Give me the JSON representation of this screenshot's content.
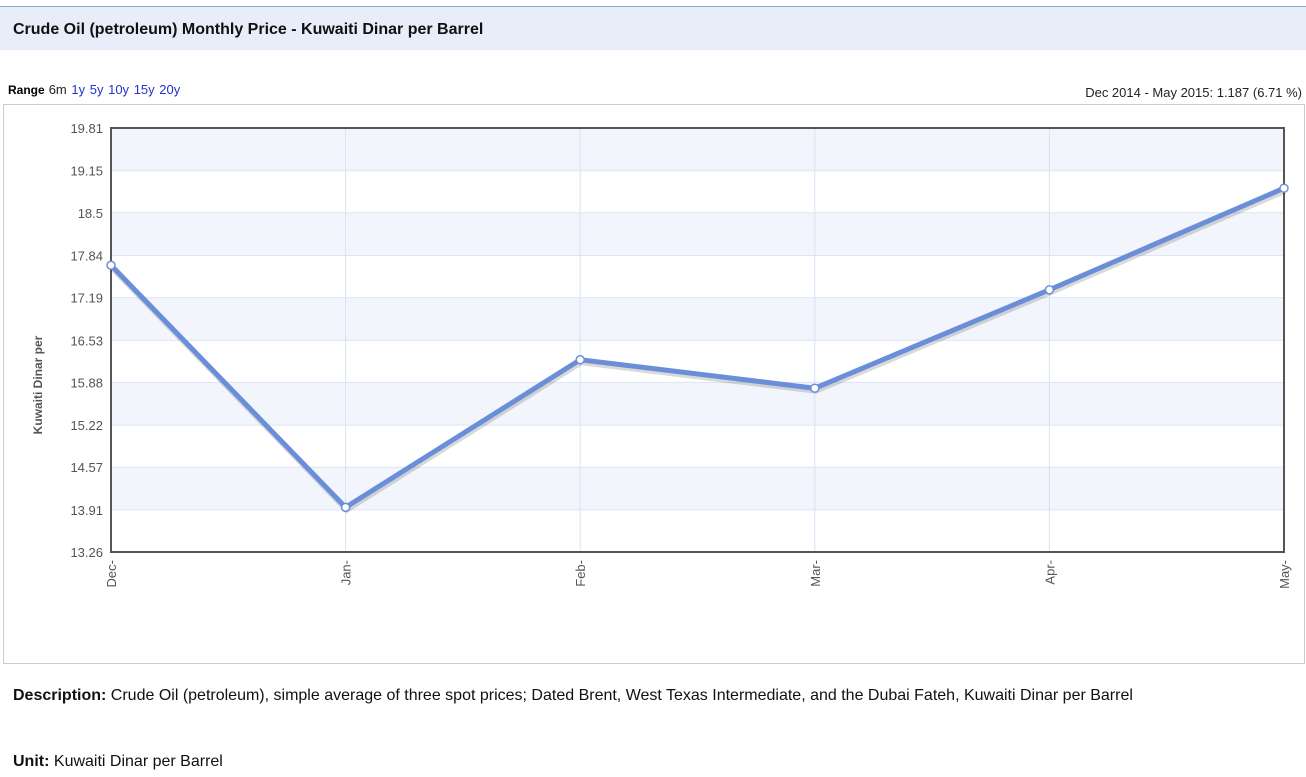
{
  "header": {
    "title": "Crude Oil (petroleum) Monthly Price - Kuwaiti Dinar per Barrel"
  },
  "range": {
    "label": "Range",
    "options": [
      "6m",
      "1y",
      "5y",
      "10y",
      "15y",
      "20y"
    ]
  },
  "summary": "Dec 2014 - May 2015: 1.187 (6.71 %)",
  "chart_data": {
    "type": "line",
    "ylabel": "Kuwaiti Dinar per",
    "categories": [
      "Dec-",
      "Jan-",
      "Feb-",
      "Mar-",
      "Apr-",
      "May-"
    ],
    "series": [
      {
        "name": "Kuwaiti Dinar per Barrel",
        "color": "#6a8fd8",
        "values": [
          17.69,
          13.95,
          16.23,
          15.79,
          17.31,
          18.88
        ]
      }
    ],
    "ylim": [
      13.26,
      19.81
    ],
    "yticks": [
      13.26,
      13.91,
      14.57,
      15.22,
      15.88,
      16.53,
      17.19,
      17.84,
      18.5,
      19.15,
      19.81
    ],
    "grid": true
  },
  "description": {
    "label": "Description:",
    "text": "Crude Oil (petroleum), simple average of three spot prices; Dated Brent, West Texas Intermediate, and the Dubai Fateh, Kuwaiti Dinar per Barrel"
  },
  "unit": {
    "label": "Unit:",
    "text": "Kuwaiti Dinar per Barrel"
  }
}
